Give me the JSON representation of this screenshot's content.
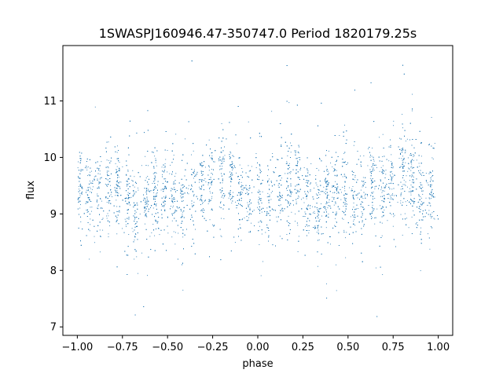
{
  "chart_data": {
    "type": "scatter",
    "title": "1SWASPJ160946.47-350747.0 Period 1820179.25s",
    "xlabel": "phase",
    "ylabel": "flux",
    "xlim": [
      -1.08,
      1.08
    ],
    "ylim": [
      6.85,
      11.98
    ],
    "xticks": [
      -1.0,
      -0.75,
      -0.5,
      -0.25,
      0.0,
      0.25,
      0.5,
      0.75,
      1.0
    ],
    "xtick_labels": [
      "−1.00",
      "−0.75",
      "−0.50",
      "−0.25",
      "0.00",
      "0.25",
      "0.50",
      "0.75",
      "1.00"
    ],
    "yticks": [
      7,
      8,
      9,
      10,
      11
    ],
    "ytick_labels": [
      "7",
      "8",
      "9",
      "10",
      "11"
    ],
    "grid": false,
    "legend": "none",
    "point_color": "#1f77b4",
    "series": [
      {
        "x_range": [
          -1.0,
          1.0
        ],
        "typical_y_range": [
          8.6,
          10.2
        ],
        "y_extremes": [
          7.0,
          11.75
        ],
        "point_count_estimate": 24000,
        "note_symmetry": "phase repeated: points at x and x-1 identical",
        "clusters_x": [
          -0.99,
          -0.94,
          -0.88,
          -0.83,
          -0.78,
          -0.72,
          -0.68,
          -0.62,
          -0.57,
          -0.52,
          -0.47,
          -0.42,
          -0.36,
          -0.31,
          -0.26,
          -0.2,
          -0.15,
          -0.1,
          -0.05,
          0.01,
          0.06,
          0.12,
          0.17,
          0.22,
          0.27,
          0.33,
          0.38,
          0.43,
          0.48,
          0.53,
          0.58,
          0.63,
          0.69,
          0.74,
          0.8,
          0.85,
          0.9,
          0.96
        ],
        "cluster_centers_y": [
          9.4,
          9.3,
          9.35,
          9.5,
          9.6,
          9.2,
          9.0,
          9.3,
          9.4,
          9.45,
          9.3,
          9.2,
          9.4,
          9.5,
          9.6,
          9.8,
          9.7,
          9.3,
          9.4,
          9.4,
          9.3,
          9.35,
          9.5,
          9.6,
          9.2,
          9.0,
          9.3,
          9.4,
          9.45,
          9.3,
          9.2,
          9.4,
          9.5,
          9.6,
          9.8,
          9.7,
          9.3,
          9.4
        ]
      }
    ]
  }
}
